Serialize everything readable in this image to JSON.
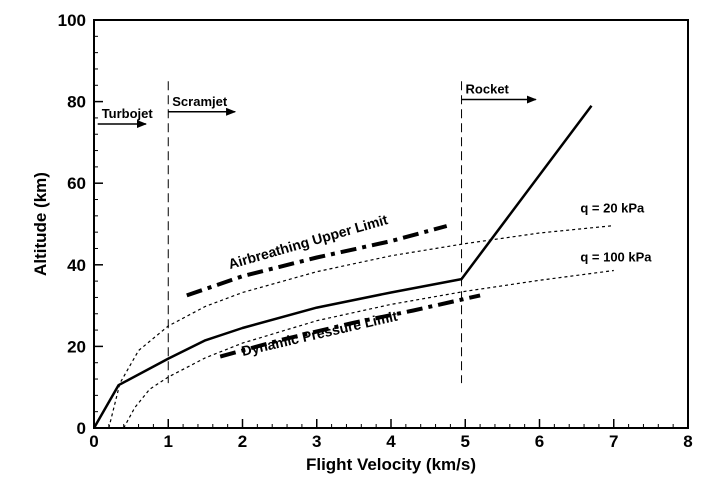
{
  "chart_data": {
    "type": "line",
    "title": "",
    "xlabel": "Flight Velocity (km/s)",
    "ylabel": "Altitude (km)",
    "xlim": [
      0,
      8
    ],
    "ylim": [
      0,
      100
    ],
    "xticks": [
      0,
      1,
      2,
      3,
      4,
      5,
      6,
      7,
      8
    ],
    "yticks": [
      0,
      20,
      40,
      60,
      80,
      100
    ],
    "grid": false,
    "legend": "none",
    "series": [
      {
        "style": "solid-thick",
        "points": [
          [
            0,
            0
          ],
          [
            0.33,
            10.5
          ],
          [
            1,
            17
          ],
          [
            1.5,
            21.5
          ],
          [
            2,
            24.5
          ],
          [
            3,
            29.5
          ],
          [
            4,
            33.2
          ],
          [
            4.95,
            36.5
          ],
          [
            6.7,
            79
          ]
        ]
      },
      {
        "name": "q = 20 kPa",
        "style": "dotted",
        "points": [
          [
            0.2,
            0
          ],
          [
            0.35,
            11
          ],
          [
            0.6,
            19
          ],
          [
            1,
            25
          ],
          [
            1.5,
            29.8
          ],
          [
            2,
            33.2
          ],
          [
            3,
            38.3
          ],
          [
            4,
            42.2
          ],
          [
            5,
            45.2
          ],
          [
            6,
            47.8
          ],
          [
            7,
            49.6
          ]
        ]
      },
      {
        "name": "q = 100 kPa",
        "style": "dotted",
        "points": [
          [
            0.4,
            0
          ],
          [
            0.55,
            5
          ],
          [
            0.75,
            9.5
          ],
          [
            1,
            12.5
          ],
          [
            1.5,
            17.2
          ],
          [
            2,
            20.8
          ],
          [
            3,
            26.3
          ],
          [
            4,
            30.3
          ],
          [
            5,
            33.5
          ],
          [
            6,
            36.2
          ],
          [
            7,
            38.6
          ]
        ]
      },
      {
        "name": "Airbreathing Upper Limit",
        "style": "dash-dot-thick",
        "points": [
          [
            1.25,
            32.5
          ],
          [
            2,
            37.2
          ],
          [
            3,
            41.8
          ],
          [
            4,
            45.8
          ],
          [
            4.75,
            49.5
          ]
        ]
      },
      {
        "name": "Dynamic Pressure Limit",
        "style": "dash-dot-thick",
        "points": [
          [
            1.7,
            17.5
          ],
          [
            2.5,
            21.5
          ],
          [
            3.5,
            25.8
          ],
          [
            4.3,
            28.8
          ],
          [
            5.2,
            32.5
          ]
        ]
      }
    ],
    "vertical_lines": [
      1,
      4.95
    ],
    "regions": [
      {
        "label": "Turbojet",
        "arrow_from": 0.05,
        "arrow_to": 0.7,
        "y": 74.5
      },
      {
        "label": "Scramjet",
        "arrow_from": 1.0,
        "arrow_to": 1.9,
        "y": 77.5
      },
      {
        "label": "Rocket",
        "arrow_from": 4.95,
        "arrow_to": 5.95,
        "y": 80.5
      }
    ],
    "annotations": [
      {
        "text": "Airbreathing Upper Limit",
        "x": 2.9,
        "y": 44.5,
        "angle": -16
      },
      {
        "text": "Dynamic Pressure Limit",
        "x": 3.05,
        "y": 22.0,
        "angle": -13
      },
      {
        "text": "q = 20 kPa",
        "x": 6.55,
        "y": 52.8,
        "angle": 0
      },
      {
        "text": "q = 100 kPa",
        "x": 6.55,
        "y": 40.8,
        "angle": 0
      }
    ]
  }
}
